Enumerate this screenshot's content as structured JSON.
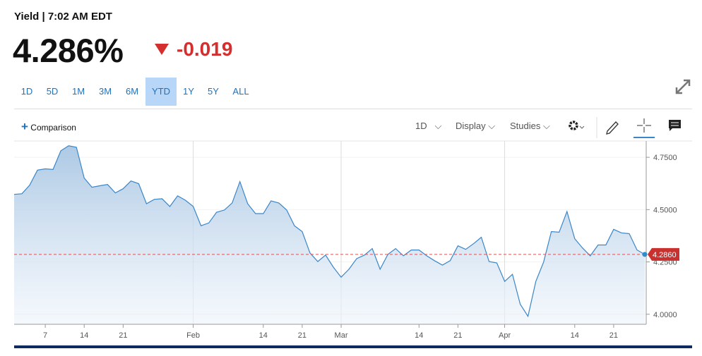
{
  "header": {
    "status": "Yield | 7:02 AM EDT",
    "price": "4.286%",
    "change": -0.019
  },
  "ranges": {
    "items": [
      "1D",
      "5D",
      "1M",
      "3M",
      "6M",
      "YTD",
      "1Y",
      "5Y",
      "ALL"
    ],
    "selected": 5
  },
  "toolbar": {
    "comparison": "Comparison",
    "interval": "1D",
    "display": "Display",
    "studies": "Studies"
  },
  "chart_data": {
    "type": "area",
    "categories": [
      null,
      null,
      null,
      null,
      "7",
      null,
      null,
      null,
      null,
      "14",
      null,
      null,
      null,
      null,
      "21",
      null,
      null,
      null,
      null,
      null,
      null,
      null,
      null,
      "Feb",
      null,
      null,
      null,
      null,
      null,
      null,
      null,
      null,
      "14",
      null,
      null,
      null,
      null,
      "21",
      null,
      null,
      null,
      null,
      "Mar",
      null,
      null,
      null,
      null,
      null,
      null,
      null,
      null,
      null,
      "14",
      null,
      null,
      null,
      null,
      "21",
      null,
      null,
      null,
      null,
      null,
      "Apr",
      null,
      null,
      null,
      null,
      null,
      null,
      null,
      null,
      "14",
      null,
      null,
      null,
      null,
      "21",
      null,
      null,
      null,
      null
    ],
    "values": [
      4.573,
      4.576,
      4.617,
      4.689,
      4.695,
      4.692,
      4.781,
      4.805,
      4.798,
      4.651,
      4.607,
      4.614,
      4.62,
      4.58,
      4.6,
      4.637,
      4.624,
      4.528,
      4.549,
      4.552,
      4.515,
      4.566,
      4.545,
      4.515,
      4.423,
      4.436,
      4.487,
      4.498,
      4.532,
      4.634,
      4.528,
      4.481,
      4.481,
      4.542,
      4.532,
      4.498,
      4.423,
      4.395,
      4.293,
      4.252,
      4.283,
      4.225,
      4.177,
      4.215,
      4.266,
      4.283,
      4.314,
      4.215,
      4.286,
      4.314,
      4.279,
      4.307,
      4.307,
      4.279,
      4.256,
      4.235,
      4.256,
      4.327,
      4.31,
      4.337,
      4.368,
      4.252,
      4.245,
      4.157,
      4.191,
      4.048,
      3.99,
      4.157,
      4.249,
      4.395,
      4.392,
      4.491,
      4.361,
      4.317,
      4.279,
      4.331,
      4.331,
      4.406,
      4.389,
      4.385,
      4.307,
      4.286
    ],
    "color": "#3a86c8",
    "ylim": [
      3.952,
      4.828
    ],
    "yticks": [
      {
        "value": 4.0,
        "label": "4.0000"
      },
      {
        "value": 4.25,
        "label": "4.2500"
      },
      {
        "value": 4.5,
        "label": "4.5000"
      },
      {
        "value": 4.75,
        "label": "4.7500"
      }
    ],
    "last_price": {
      "value": 4.286,
      "label": "4.2860"
    }
  }
}
